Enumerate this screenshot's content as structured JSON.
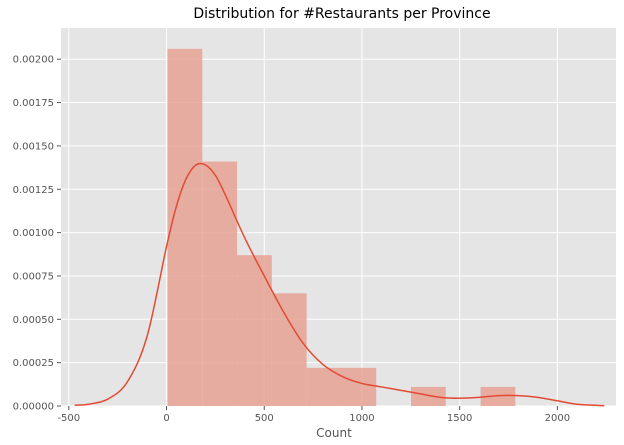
{
  "chart_data": {
    "type": "histogram",
    "title": "Distribution for #Restaurants per Province",
    "xlabel": "Count",
    "ylabel": "",
    "xlim": [
      -540,
      2300
    ],
    "ylim": [
      0,
      0.00218
    ],
    "xticks": [
      -500,
      0,
      500,
      1000,
      1500,
      2000
    ],
    "xtick_labels": [
      "-500",
      "0",
      "500",
      "1000",
      "1500",
      "2000"
    ],
    "yticks": [
      0,
      0.00025,
      0.0005,
      0.00075,
      0.001,
      0.00125,
      0.0015,
      0.00175,
      0.002
    ],
    "ytick_labels": [
      "0.00000",
      "0.00025",
      "0.00050",
      "0.00075",
      "0.00100",
      "0.00125",
      "0.00150",
      "0.00175",
      "0.00200"
    ],
    "grid": true,
    "bins": [
      {
        "x0": 5,
        "x1": 183,
        "value": 0.00206
      },
      {
        "x0": 183,
        "x1": 361,
        "value": 0.00141
      },
      {
        "x0": 361,
        "x1": 539,
        "value": 0.00087
      },
      {
        "x0": 539,
        "x1": 717,
        "value": 0.00065
      },
      {
        "x0": 717,
        "x1": 895,
        "value": 0.00022
      },
      {
        "x0": 895,
        "x1": 1073,
        "value": 0.00022
      },
      {
        "x0": 1073,
        "x1": 1251,
        "value": 0
      },
      {
        "x0": 1251,
        "x1": 1429,
        "value": 0.00011
      },
      {
        "x0": 1429,
        "x1": 1607,
        "value": 0
      },
      {
        "x0": 1607,
        "x1": 1785,
        "value": 0.00011
      }
    ],
    "kde": {
      "x": [
        -470,
        -400,
        -300,
        -200,
        -100,
        0,
        50,
        100,
        150,
        200,
        250,
        300,
        400,
        500,
        600,
        700,
        800,
        900,
        1000,
        1100,
        1200,
        1300,
        1400,
        1500,
        1600,
        1700,
        1800,
        1900,
        2000,
        2100,
        2240
      ],
      "y": [
        5e-06,
        1e-05,
        4e-05,
        0.00014,
        0.0004,
        0.00092,
        0.00115,
        0.00131,
        0.00139,
        0.00139,
        0.00133,
        0.00122,
        0.00097,
        0.00075,
        0.00054,
        0.00036,
        0.00024,
        0.00017,
        0.00013,
        0.00011,
        9e-05,
        7e-05,
        5e-05,
        4.5e-05,
        5e-05,
        6e-05,
        6e-05,
        5e-05,
        3e-05,
        1e-05,
        2e-06
      ]
    },
    "colors": {
      "background": "#e5e5e5",
      "grid": "#ffffff",
      "bar": "#e8a294",
      "line": "#e24a33"
    }
  }
}
